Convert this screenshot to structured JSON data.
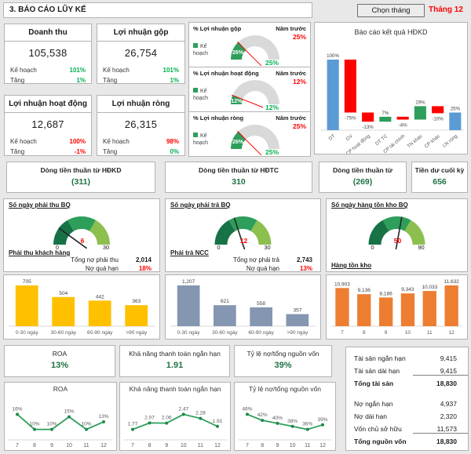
{
  "header": {
    "title": "3. BÁO CÁO LŨY KẾ",
    "month_button": "Chọn tháng",
    "month_label": "Tháng 12"
  },
  "kpi_cards": [
    {
      "title": "Doanh thu",
      "value": "105,538",
      "plan_label": "Kế hoạch",
      "plan_value": "101%",
      "plan_color": "#00B050",
      "growth_label": "Tăng",
      "growth_value": "1%",
      "growth_color": "#00B050"
    },
    {
      "title": "Lợi nhuận gộp",
      "value": "26,754",
      "plan_label": "Kế hoạch",
      "plan_value": "101%",
      "plan_color": "#00B050",
      "growth_label": "Tăng",
      "growth_value": "1%",
      "growth_color": "#00B050"
    },
    {
      "title": "Lợi nhuận hoạt động",
      "value": "12,687",
      "plan_label": "Kế hoạch",
      "plan_value": "100%",
      "plan_color": "#FF0000",
      "growth_label": "Tăng",
      "growth_value": "-1%",
      "growth_color": "#FF0000"
    },
    {
      "title": "Lợi nhuận ròng",
      "value": "26,315",
      "plan_label": "Kế hoạch",
      "plan_value": "98%",
      "plan_color": "#FF0000",
      "growth_label": "Tăng",
      "growth_value": "0%",
      "growth_color": "#00B050"
    }
  ],
  "margin_panels": [
    {
      "title": "% Lợi nhuận gộp",
      "prev_label": "Năm trước",
      "prev_value": "25%",
      "legend": "Kế hoạch"
    },
    {
      "title": "% Lợi nhuận hoạt động",
      "prev_label": "Năm trước",
      "prev_value": "12%",
      "legend": "Kế hoạch"
    },
    {
      "title": "% Lợi nhuận ròng",
      "prev_label": "Năm trước",
      "prev_value": "25%",
      "legend": "Kế hoạch"
    }
  ],
  "cashflow_cards": [
    {
      "title": "Dòng tiền thuần từ HĐKD",
      "value": "(311)"
    },
    {
      "title": "Dòng tiền thuần từ HĐTC",
      "value": "310"
    },
    {
      "title": "Dòng tiền thuần từ",
      "value": "(269)"
    },
    {
      "title": "Tiền dư cuối kỳ",
      "value": "656"
    }
  ],
  "day_panels": [
    {
      "title": "Số ngày phải thu BQ",
      "info_title": "Phải thu khách hàng",
      "rows": [
        {
          "label": "Tổng nợ phải thu",
          "value": "2,014",
          "color": "#1a1a1a"
        },
        {
          "label": "Nợ quá hạn",
          "value": "18%",
          "color": "#FF0000"
        }
      ]
    },
    {
      "title": "Số ngày phải trả BQ",
      "info_title": "Phải trả NCC",
      "rows": [
        {
          "label": "Tổng nợ phải trả",
          "value": "2,743",
          "color": "#1a1a1a"
        },
        {
          "label": "Nợ quá hạn",
          "value": "13%",
          "color": "#FF0000"
        }
      ]
    },
    {
      "title": "Số ngày hàng tồn kho BQ",
      "info_title": "Hàng tồn kho",
      "rows": []
    }
  ],
  "ratio_cards": [
    {
      "title": "ROA",
      "value": "13%"
    },
    {
      "title": "Khả năng thanh toán ngắn hạn",
      "value": "1.91"
    },
    {
      "title": "Tỷ lệ nợ/tổng nguồn vốn",
      "value": "39%"
    }
  ],
  "balance_table": {
    "rows": [
      {
        "label": "Tài sản ngắn hạn",
        "value": "9,415"
      },
      {
        "label": "Tài sản dài hạn",
        "value": "9,415",
        "underline": true
      },
      {
        "label": "Tổng tài sản",
        "value": "18,830",
        "bold": true
      },
      {
        "spacer": true
      },
      {
        "label": "Nợ ngắn hạn",
        "value": "4,937"
      },
      {
        "label": "Nợ dài hạn",
        "value": "2,320"
      },
      {
        "label": "Vốn chủ sở hữu",
        "value": "11,573",
        "underline": true
      },
      {
        "label": "Tổng nguồn vốn",
        "value": "18,830",
        "bold": true
      }
    ]
  },
  "chart_data": [
    {
      "id": "profit-waterfall",
      "type": "bar",
      "subtype": "waterfall",
      "title": "Báo cáo kết quả HĐKD",
      "categories": [
        "DT",
        "GV",
        "CP hoạt động",
        "DT TC",
        "CP tài chính",
        "TN khác",
        "CP khác",
        "LN ròng"
      ],
      "values": [
        100,
        -75,
        -13,
        7,
        -4,
        19,
        -10,
        25
      ],
      "kinds": [
        "total",
        "delta",
        "delta",
        "delta",
        "delta",
        "delta",
        "delta",
        "total"
      ],
      "labels": [
        "100%",
        "-75%",
        "-13%",
        "7%",
        "-4%",
        "19%",
        "-10%",
        "25%"
      ],
      "colors": {
        "total": "#5B9BD5",
        "up": "#2E9E5B",
        "down": "#FF0000"
      },
      "ylim": [
        0,
        110
      ],
      "legend": "none"
    },
    {
      "id": "gauge-gross-margin",
      "type": "gauge",
      "subtype": "margin",
      "min": 0,
      "max": 100,
      "plan": 26,
      "value": 25,
      "plan_label": "26%",
      "value_label": "25%",
      "colors": {
        "plan": "#2E9E5B",
        "rest": "#D9D9D9",
        "needle": "#FF0000",
        "value": "#00B050"
      }
    },
    {
      "id": "gauge-operating-margin",
      "type": "gauge",
      "subtype": "margin",
      "min": 0,
      "max": 100,
      "plan": 12,
      "value": 12,
      "plan_label": "12%",
      "value_label": "12%",
      "colors": {
        "plan": "#2E9E5B",
        "rest": "#D9D9D9",
        "needle": "#FF0000",
        "value": "#00B050"
      }
    },
    {
      "id": "gauge-net-margin",
      "type": "gauge",
      "subtype": "margin",
      "min": 0,
      "max": 100,
      "plan": 26,
      "value": 25,
      "plan_label": "26%",
      "value_label": "25%",
      "colors": {
        "plan": "#2E9E5B",
        "rest": "#D9D9D9",
        "needle": "#FF0000",
        "value": "#00B050"
      }
    },
    {
      "id": "gauge-receivable-days",
      "type": "gauge",
      "subtype": "days",
      "min": 0,
      "max": 30,
      "value": 6,
      "segments": [
        "#177245",
        "#2E9E5B",
        "#8CBF4D"
      ],
      "needle": "#262626",
      "value_color": "#FF0000"
    },
    {
      "id": "gauge-payable-days",
      "type": "gauge",
      "subtype": "days",
      "min": 0,
      "max": 30,
      "value": 12,
      "segments": [
        "#177245",
        "#2E9E5B",
        "#8CBF4D"
      ],
      "needle": "#262626",
      "value_color": "#FF0000"
    },
    {
      "id": "gauge-inventory-days",
      "type": "gauge",
      "subtype": "days",
      "min": 0,
      "max": 90,
      "value": 50,
      "segments": [
        "#177245",
        "#2E9E5B",
        "#8CBF4D"
      ],
      "needle": "#262626",
      "value_color": "#FF0000"
    },
    {
      "id": "receivable-aging",
      "type": "bar",
      "categories": [
        "0-30 ngày",
        "30-60 ngày",
        "60-90 ngày",
        ">90 ngày"
      ],
      "values": [
        705,
        504,
        442,
        363
      ],
      "labels": [
        "705",
        "504",
        "442",
        "363"
      ],
      "color": "#FFC000"
    },
    {
      "id": "payable-aging",
      "type": "bar",
      "categories": [
        "0-30 ngày",
        "30-60 ngày",
        "60-90 ngày",
        ">90 ngày"
      ],
      "values": [
        1207,
        621,
        558,
        357
      ],
      "labels": [
        "1,207",
        "621",
        "558",
        "357"
      ],
      "color": "#8496B0"
    },
    {
      "id": "inventory-by-month",
      "type": "bar",
      "categories": [
        "7",
        "8",
        "9",
        "10",
        "11",
        "12"
      ],
      "values": [
        10903,
        9136,
        8186,
        9343,
        10033,
        11632
      ],
      "labels": [
        "10,903",
        "9,136",
        "8,186",
        "9,343",
        "10,033",
        "11,632"
      ],
      "color": "#ED7D31"
    },
    {
      "id": "roa-trend",
      "type": "line",
      "title": "ROA",
      "categories": [
        "7",
        "8",
        "9",
        "10",
        "11",
        "12"
      ],
      "values": [
        16,
        10,
        10,
        15,
        10,
        13
      ],
      "labels": [
        "16%",
        "10%",
        "10%",
        "15%",
        "10%",
        "13%"
      ],
      "color": "#2E9E5B"
    },
    {
      "id": "current-ratio-trend",
      "type": "line",
      "title": "Khả năng thanh toán ngắn hạn",
      "categories": [
        "7",
        "8",
        "9",
        "10",
        "11",
        "12"
      ],
      "values": [
        1.77,
        2.07,
        2.06,
        2.47,
        2.28,
        1.91
      ],
      "labels": [
        "1.77",
        "2.07",
        "2.06",
        "2.47",
        "2.28",
        "1.91"
      ],
      "color": "#2E9E5B"
    },
    {
      "id": "debt-ratio-trend",
      "type": "line",
      "title": "Tỷ lệ nợ/tổng nguồn vốn",
      "categories": [
        "7",
        "8",
        "9",
        "10",
        "11",
        "12"
      ],
      "values": [
        46,
        42,
        40,
        38,
        36,
        39
      ],
      "labels": [
        "46%",
        "42%",
        "40%",
        "38%",
        "36%",
        "39%"
      ],
      "color": "#2E9E5B"
    }
  ]
}
